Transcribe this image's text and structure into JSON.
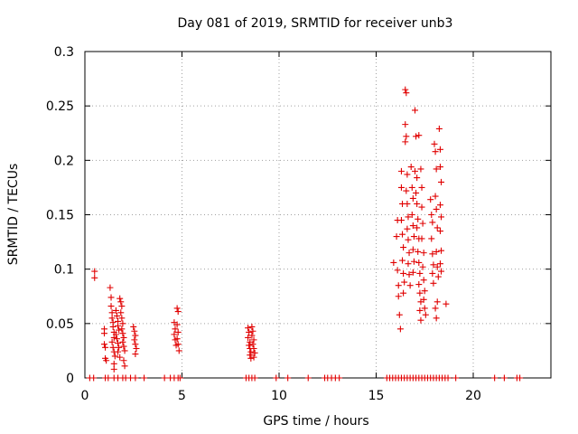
{
  "chart_data": {
    "type": "scatter",
    "title": "Day 081 of 2019, SRMTID for receiver unb3",
    "xlabel": "GPS time / hours",
    "ylabel": "SRMTID / TECUs",
    "xlim": [
      0,
      24
    ],
    "ylim": [
      0,
      0.3
    ],
    "xticks": [
      0,
      5,
      10,
      15,
      20
    ],
    "yticks": [
      0,
      0.05,
      0.1,
      0.15,
      0.2,
      0.25,
      0.3
    ],
    "ytick_labels": [
      "0",
      "0.05",
      "0.1",
      "0.15",
      "0.2",
      "0.25",
      "0.3"
    ],
    "grid": true,
    "marker": "+",
    "color": "#e00000",
    "series": [
      {
        "name": "SRMTID",
        "points": [
          [
            0.5,
            0.098
          ],
          [
            0.5,
            0.092
          ],
          [
            1.0,
            0.045
          ],
          [
            1.0,
            0.041
          ],
          [
            1.0,
            0.031
          ],
          [
            1.05,
            0.028
          ],
          [
            1.05,
            0.018
          ],
          [
            1.1,
            0.016
          ],
          [
            1.3,
            0.083
          ],
          [
            1.35,
            0.074
          ],
          [
            1.35,
            0.066
          ],
          [
            1.4,
            0.06
          ],
          [
            1.4,
            0.055
          ],
          [
            1.45,
            0.051
          ],
          [
            1.45,
            0.047
          ],
          [
            1.5,
            0.042
          ],
          [
            1.5,
            0.037
          ],
          [
            1.4,
            0.033
          ],
          [
            1.45,
            0.028
          ],
          [
            1.5,
            0.024
          ],
          [
            1.55,
            0.02
          ],
          [
            1.5,
            0.013
          ],
          [
            1.5,
            0.008
          ],
          [
            1.6,
            0.062
          ],
          [
            1.65,
            0.057
          ],
          [
            1.7,
            0.052
          ],
          [
            1.7,
            0.048
          ],
          [
            1.75,
            0.044
          ],
          [
            1.6,
            0.04
          ],
          [
            1.65,
            0.036
          ],
          [
            1.7,
            0.032
          ],
          [
            1.75,
            0.028
          ],
          [
            1.7,
            0.024
          ],
          [
            1.8,
            0.019
          ],
          [
            1.8,
            0.073
          ],
          [
            1.85,
            0.07
          ],
          [
            1.9,
            0.066
          ],
          [
            1.85,
            0.06
          ],
          [
            1.9,
            0.055
          ],
          [
            1.95,
            0.05
          ],
          [
            1.9,
            0.045
          ],
          [
            1.95,
            0.041
          ],
          [
            2.0,
            0.037
          ],
          [
            1.95,
            0.033
          ],
          [
            2.0,
            0.029
          ],
          [
            2.05,
            0.025
          ],
          [
            2.0,
            0.016
          ],
          [
            2.05,
            0.011
          ],
          [
            2.5,
            0.047
          ],
          [
            2.55,
            0.043
          ],
          [
            2.6,
            0.039
          ],
          [
            2.55,
            0.035
          ],
          [
            2.6,
            0.031
          ],
          [
            2.65,
            0.027
          ],
          [
            2.6,
            0.022
          ],
          [
            4.6,
            0.051
          ],
          [
            4.65,
            0.045
          ],
          [
            4.6,
            0.04
          ],
          [
            4.65,
            0.035
          ],
          [
            4.7,
            0.03
          ],
          [
            4.75,
            0.064
          ],
          [
            4.8,
            0.061
          ],
          [
            4.75,
            0.049
          ],
          [
            4.8,
            0.042
          ],
          [
            4.75,
            0.036
          ],
          [
            4.8,
            0.031
          ],
          [
            4.85,
            0.025
          ],
          [
            8.4,
            0.046
          ],
          [
            8.45,
            0.042
          ],
          [
            8.4,
            0.037
          ],
          [
            8.5,
            0.033
          ],
          [
            8.45,
            0.03
          ],
          [
            8.5,
            0.027
          ],
          [
            8.55,
            0.024
          ],
          [
            8.5,
            0.021
          ],
          [
            8.55,
            0.018
          ],
          [
            8.6,
            0.047
          ],
          [
            8.65,
            0.043
          ],
          [
            8.6,
            0.039
          ],
          [
            8.7,
            0.035
          ],
          [
            8.65,
            0.031
          ],
          [
            8.7,
            0.027
          ],
          [
            8.75,
            0.023
          ],
          [
            8.7,
            0.019
          ],
          [
            15.9,
            0.106
          ],
          [
            16.05,
            0.13
          ],
          [
            16.1,
            0.145
          ],
          [
            16.1,
            0.099
          ],
          [
            16.15,
            0.085
          ],
          [
            16.15,
            0.075
          ],
          [
            16.2,
            0.058
          ],
          [
            16.25,
            0.045
          ],
          [
            16.3,
            0.19
          ],
          [
            16.3,
            0.175
          ],
          [
            16.35,
            0.16
          ],
          [
            16.3,
            0.145
          ],
          [
            16.35,
            0.132
          ],
          [
            16.4,
            0.12
          ],
          [
            16.35,
            0.108
          ],
          [
            16.4,
            0.096
          ],
          [
            16.45,
            0.088
          ],
          [
            16.4,
            0.078
          ],
          [
            16.5,
            0.265
          ],
          [
            16.55,
            0.262
          ],
          [
            16.5,
            0.233
          ],
          [
            16.55,
            0.222
          ],
          [
            16.5,
            0.217
          ],
          [
            16.6,
            0.187
          ],
          [
            16.55,
            0.172
          ],
          [
            16.6,
            0.16
          ],
          [
            16.65,
            0.148
          ],
          [
            16.6,
            0.137
          ],
          [
            16.65,
            0.127
          ],
          [
            16.7,
            0.115
          ],
          [
            16.65,
            0.105
          ],
          [
            16.7,
            0.095
          ],
          [
            16.75,
            0.085
          ],
          [
            16.8,
            0.194
          ],
          [
            16.85,
            0.175
          ],
          [
            16.9,
            0.165
          ],
          [
            16.85,
            0.15
          ],
          [
            16.9,
            0.14
          ],
          [
            16.95,
            0.13
          ],
          [
            16.9,
            0.118
          ],
          [
            16.95,
            0.107
          ],
          [
            16.9,
            0.097
          ],
          [
            17.0,
            0.246
          ],
          [
            17.05,
            0.222
          ],
          [
            17.0,
            0.19
          ],
          [
            17.1,
            0.184
          ],
          [
            17.05,
            0.17
          ],
          [
            17.1,
            0.16
          ],
          [
            17.15,
            0.146
          ],
          [
            17.1,
            0.138
          ],
          [
            17.2,
            0.128
          ],
          [
            17.15,
            0.116
          ],
          [
            17.2,
            0.106
          ],
          [
            17.25,
            0.096
          ],
          [
            17.2,
            0.086
          ],
          [
            17.25,
            0.078
          ],
          [
            17.3,
            0.07
          ],
          [
            17.25,
            0.062
          ],
          [
            17.3,
            0.053
          ],
          [
            17.2,
            0.223
          ],
          [
            17.3,
            0.192
          ],
          [
            17.35,
            0.175
          ],
          [
            17.35,
            0.157
          ],
          [
            17.4,
            0.142
          ],
          [
            17.35,
            0.128
          ],
          [
            17.45,
            0.115
          ],
          [
            17.4,
            0.102
          ],
          [
            17.45,
            0.09
          ],
          [
            17.5,
            0.08
          ],
          [
            17.45,
            0.072
          ],
          [
            17.5,
            0.064
          ],
          [
            17.55,
            0.058
          ],
          [
            17.8,
            0.164
          ],
          [
            17.85,
            0.15
          ],
          [
            17.9,
            0.143
          ],
          [
            17.85,
            0.128
          ],
          [
            17.9,
            0.114
          ],
          [
            17.95,
            0.104
          ],
          [
            17.9,
            0.096
          ],
          [
            17.95,
            0.087
          ],
          [
            18.0,
            0.215
          ],
          [
            18.05,
            0.208
          ],
          [
            18.1,
            0.192
          ],
          [
            18.05,
            0.167
          ],
          [
            18.1,
            0.155
          ],
          [
            18.15,
            0.138
          ],
          [
            18.1,
            0.116
          ],
          [
            18.15,
            0.102
          ],
          [
            18.2,
            0.093
          ],
          [
            18.15,
            0.07
          ],
          [
            18.05,
            0.064
          ],
          [
            18.1,
            0.055
          ],
          [
            18.25,
            0.229
          ],
          [
            18.3,
            0.21
          ],
          [
            18.3,
            0.194
          ],
          [
            18.35,
            0.18
          ],
          [
            18.3,
            0.159
          ],
          [
            18.35,
            0.148
          ],
          [
            18.3,
            0.135
          ],
          [
            18.35,
            0.117
          ],
          [
            18.3,
            0.105
          ],
          [
            18.35,
            0.098
          ],
          [
            18.6,
            0.068
          ]
        ],
        "zero_points": [
          0.25,
          0.45,
          1.05,
          1.2,
          1.5,
          1.7,
          1.95,
          2.1,
          2.35,
          2.6,
          3.05,
          4.1,
          4.4,
          4.6,
          4.8,
          4.9,
          8.3,
          8.45,
          8.6,
          8.75,
          9.85,
          10.45,
          11.5,
          12.35,
          12.5,
          12.7,
          12.9,
          13.1,
          15.55,
          15.7,
          15.85,
          16.0,
          16.15,
          16.3,
          16.45,
          16.6,
          16.75,
          16.9,
          17.05,
          17.2,
          17.35,
          17.5,
          17.65,
          17.8,
          17.95,
          18.1,
          18.25,
          18.4,
          18.55,
          18.7,
          19.1,
          21.1,
          21.6,
          22.25,
          22.4
        ]
      }
    ]
  }
}
